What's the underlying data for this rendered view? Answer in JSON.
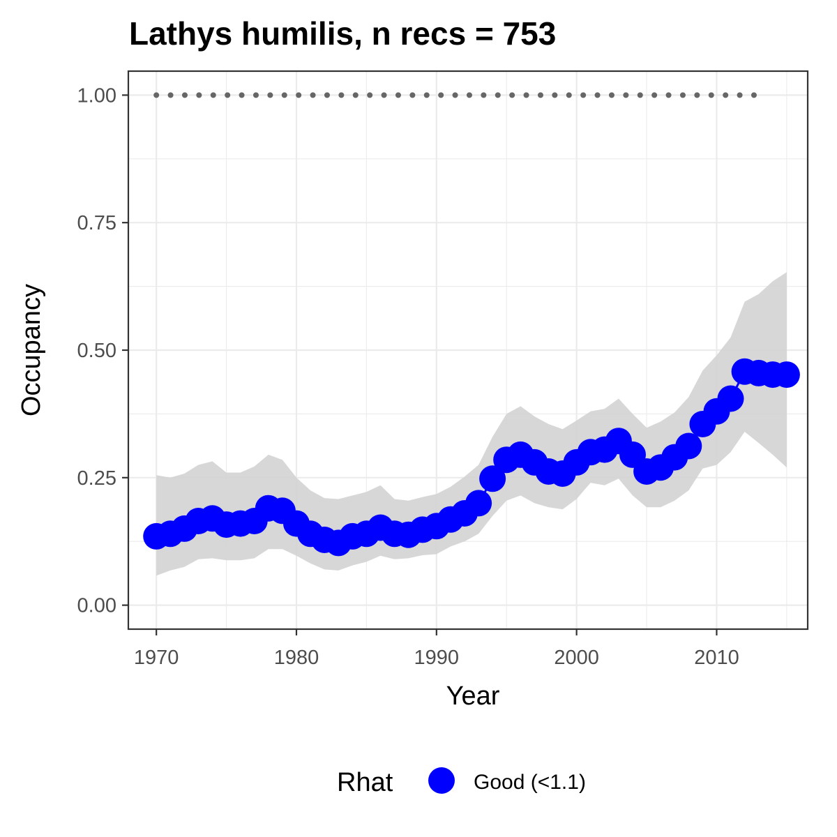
{
  "chart_data": {
    "type": "line",
    "title": "Lathys humilis, n recs = 753",
    "xlabel": "Year",
    "ylabel": "Occupancy",
    "xlim": [
      1968,
      2016.5
    ],
    "ylim": [
      -0.047,
      1.047
    ],
    "x_ticks": [
      1970,
      1980,
      1990,
      2000,
      2010
    ],
    "x_tick_labels": [
      "1970",
      "1980",
      "1990",
      "2000",
      "2010"
    ],
    "y_ticks": [
      0,
      0.25,
      0.5,
      0.75,
      1.0
    ],
    "y_tick_labels": [
      "0.00",
      "0.25",
      "0.50",
      "0.75",
      "1.00"
    ],
    "grid": true,
    "legend": {
      "position": "bottom",
      "title": "Rhat",
      "entries": [
        {
          "label": "Good (<1.1)",
          "color": "#0000ff"
        }
      ]
    },
    "colors": {
      "points": "#0000ff",
      "ribbon": "#d3d3d3",
      "dotted_line": "#666666"
    },
    "years": [
      1970,
      1971,
      1972,
      1973,
      1974,
      1975,
      1976,
      1977,
      1978,
      1979,
      1980,
      1981,
      1982,
      1983,
      1984,
      1985,
      1986,
      1987,
      1988,
      1989,
      1990,
      1991,
      1992,
      1993,
      1994,
      1995,
      1996,
      1997,
      1998,
      1999,
      2000,
      2001,
      2002,
      2003,
      2004,
      2005,
      2006,
      2007,
      2008,
      2009,
      2010,
      2011,
      2012,
      2013,
      2014,
      2015
    ],
    "series": [
      {
        "name": "Good (<1.1)",
        "values": [
          0.135,
          0.14,
          0.15,
          0.165,
          0.17,
          0.158,
          0.16,
          0.165,
          0.19,
          0.185,
          0.16,
          0.14,
          0.128,
          0.122,
          0.135,
          0.14,
          0.152,
          0.14,
          0.138,
          0.148,
          0.155,
          0.168,
          0.18,
          0.2,
          0.248,
          0.285,
          0.295,
          0.28,
          0.262,
          0.258,
          0.28,
          0.3,
          0.305,
          0.322,
          0.295,
          0.262,
          0.27,
          0.29,
          0.312,
          0.355,
          0.38,
          0.405,
          0.458,
          0.455,
          0.452,
          0.452
        ]
      }
    ],
    "ribbon": {
      "lower": [
        0.058,
        0.068,
        0.075,
        0.09,
        0.092,
        0.088,
        0.088,
        0.092,
        0.11,
        0.11,
        0.097,
        0.082,
        0.07,
        0.068,
        0.078,
        0.085,
        0.097,
        0.09,
        0.092,
        0.098,
        0.1,
        0.115,
        0.125,
        0.14,
        0.175,
        0.205,
        0.215,
        0.2,
        0.192,
        0.188,
        0.208,
        0.24,
        0.235,
        0.248,
        0.215,
        0.192,
        0.192,
        0.205,
        0.225,
        0.268,
        0.275,
        0.3,
        0.34,
        0.318,
        0.295,
        0.27
      ],
      "upper": [
        0.255,
        0.25,
        0.258,
        0.275,
        0.282,
        0.26,
        0.26,
        0.272,
        0.295,
        0.285,
        0.25,
        0.225,
        0.21,
        0.208,
        0.215,
        0.222,
        0.235,
        0.208,
        0.205,
        0.212,
        0.218,
        0.232,
        0.252,
        0.275,
        0.33,
        0.375,
        0.39,
        0.37,
        0.355,
        0.345,
        0.362,
        0.38,
        0.385,
        0.405,
        0.375,
        0.348,
        0.36,
        0.378,
        0.408,
        0.46,
        0.49,
        0.525,
        0.595,
        0.61,
        0.635,
        0.653
      ]
    },
    "dotted_line": {
      "y": 1.0,
      "x_start": 1970,
      "x_end": 2013
    }
  }
}
